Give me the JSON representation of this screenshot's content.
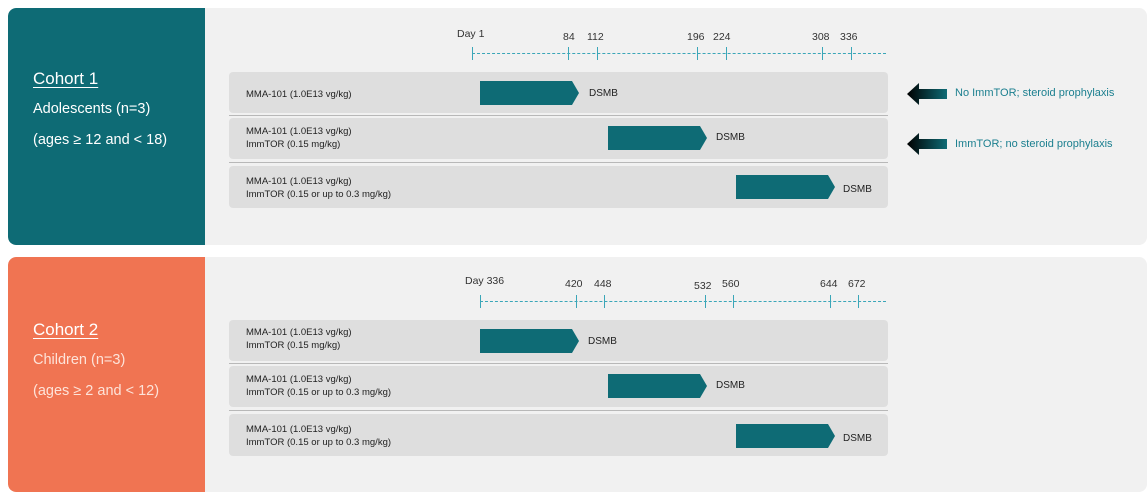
{
  "colors": {
    "cohort1": "#0e6b75",
    "cohort2": "#f07452",
    "bar": "#0e6b75",
    "axis": "#3aa6b8",
    "note": "#1b7f8f"
  },
  "cohort1": {
    "title": "Cohort 1",
    "line1": "Adolescents (n=3)",
    "line2": "(ages ≥ 12 and < 18)",
    "ticks": [
      "Day 1",
      "84",
      "112",
      "196",
      "224",
      "308",
      "336"
    ],
    "rows": [
      {
        "lines": [
          "MMA-101 (1.0E13 vg/kg)"
        ],
        "label": "DSMB"
      },
      {
        "lines": [
          "MMA-101 (1.0E13 vg/kg)",
          "ImmTOR (0.15 mg/kg)"
        ],
        "label": "DSMB"
      },
      {
        "lines": [
          "MMA-101 (1.0E13 vg/kg)",
          "ImmTOR (0.15 or up to 0.3 mg/kg)"
        ],
        "label": "DSMB"
      }
    ],
    "notes": [
      "No ImmTOR; steroid prophylaxis",
      "ImmTOR; no steroid prophylaxis"
    ]
  },
  "cohort2": {
    "title": "Cohort 2",
    "line1": "Children (n=3)",
    "line2": "(ages ≥ 2 and < 12)",
    "ticks": [
      "Day 336",
      "420",
      "448",
      "532",
      "560",
      "644",
      "672"
    ],
    "rows": [
      {
        "lines": [
          "MMA-101 (1.0E13 vg/kg)",
          "ImmTOR (0.15 mg/kg)"
        ],
        "label": "DSMB"
      },
      {
        "lines": [
          "MMA-101 (1.0E13 vg/kg)",
          "ImmTOR (0.15 or up to 0.3 mg/kg)"
        ],
        "label": "DSMB"
      },
      {
        "lines": [
          "MMA-101 (1.0E13 vg/kg)",
          "ImmTOR (0.15 or up to 0.3 mg/kg)"
        ],
        "label": "DSMB"
      }
    ]
  }
}
